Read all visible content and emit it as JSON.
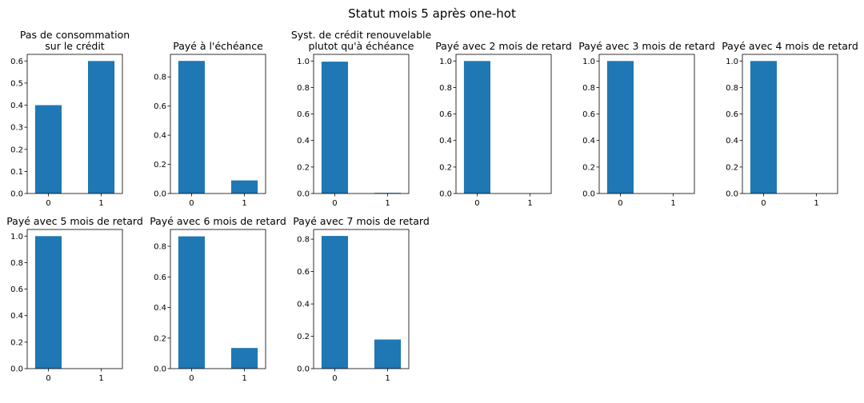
{
  "figure": {
    "title": "Statut mois 5 après one-hot"
  },
  "colors": {
    "bar": "#1f77b4",
    "frame": "#000000",
    "background": "#ffffff"
  },
  "chart_data": [
    {
      "type": "bar",
      "title": "Pas de consommation\nsur le crédit",
      "categories": [
        "0",
        "1"
      ],
      "values": [
        0.4,
        0.6
      ],
      "ylim": [
        0,
        0.63
      ],
      "yticks": [
        "0.0",
        "0.1",
        "0.2",
        "0.3",
        "0.4",
        "0.5",
        "0.6"
      ],
      "grid": false
    },
    {
      "type": "bar",
      "title": "Payé à l'échéance",
      "categories": [
        "0",
        "1"
      ],
      "values": [
        0.91,
        0.09
      ],
      "ylim": [
        0,
        0.955
      ],
      "yticks": [
        "0.0",
        "0.2",
        "0.4",
        "0.6",
        "0.8"
      ],
      "grid": false
    },
    {
      "type": "bar",
      "title": "Syst. de crédit renouvelable\nplutot qu'à échéance",
      "categories": [
        "0",
        "1"
      ],
      "values": [
        0.995,
        0.005
      ],
      "ylim": [
        0,
        1.05
      ],
      "yticks": [
        "0.0",
        "0.2",
        "0.4",
        "0.6",
        "0.8",
        "1.0"
      ],
      "grid": false
    },
    {
      "type": "bar",
      "title": "Payé avec 2 mois de retard",
      "categories": [
        "0",
        "1"
      ],
      "values": [
        1.0,
        0.0
      ],
      "ylim": [
        0,
        1.05
      ],
      "yticks": [
        "0.0",
        "0.2",
        "0.4",
        "0.6",
        "0.8",
        "1.0"
      ],
      "grid": false
    },
    {
      "type": "bar",
      "title": "Payé avec 3 mois de retard",
      "categories": [
        "0",
        "1"
      ],
      "values": [
        1.0,
        0.0
      ],
      "ylim": [
        0,
        1.05
      ],
      "yticks": [
        "0.0",
        "0.2",
        "0.4",
        "0.6",
        "0.8",
        "1.0"
      ],
      "grid": false
    },
    {
      "type": "bar",
      "title": "Payé avec 4 mois de retard",
      "categories": [
        "0",
        "1"
      ],
      "values": [
        1.0,
        0.0
      ],
      "ylim": [
        0,
        1.05
      ],
      "yticks": [
        "0.0",
        "0.2",
        "0.4",
        "0.6",
        "0.8",
        "1.0"
      ],
      "grid": false
    },
    {
      "type": "bar",
      "title": "Payé avec 5 mois de retard",
      "categories": [
        "0",
        "1"
      ],
      "values": [
        1.0,
        0.0
      ],
      "ylim": [
        0,
        1.05
      ],
      "yticks": [
        "0.0",
        "0.2",
        "0.4",
        "0.6",
        "0.8",
        "1.0"
      ],
      "grid": false
    },
    {
      "type": "bar",
      "title": "Payé avec 6 mois de retard",
      "categories": [
        "0",
        "1"
      ],
      "values": [
        0.865,
        0.135
      ],
      "ylim": [
        0,
        0.91
      ],
      "yticks": [
        "0.0",
        "0.2",
        "0.4",
        "0.6",
        "0.8"
      ],
      "grid": false
    },
    {
      "type": "bar",
      "title": "Payé avec 7 mois de retard",
      "categories": [
        "0",
        "1"
      ],
      "values": [
        0.82,
        0.18
      ],
      "ylim": [
        0,
        0.86
      ],
      "yticks": [
        "0.0",
        "0.2",
        "0.4",
        "0.6",
        "0.8"
      ],
      "grid": false
    }
  ]
}
